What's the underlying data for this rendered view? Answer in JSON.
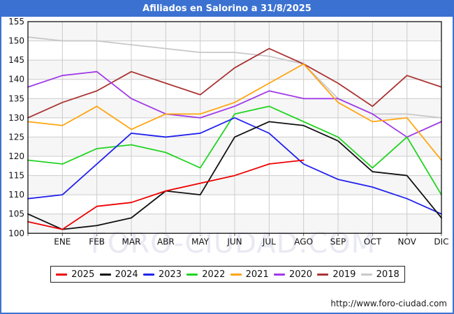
{
  "window": {
    "title": "Afiliados en Salorino a 31/8/2025",
    "header_color": "#3b72d2"
  },
  "watermark": "FORO-CIUDAD.COM",
  "footer": {
    "url": "http://www.foro-ciudad.com"
  },
  "legend": {
    "position": "bottom",
    "entries": [
      "2025",
      "2024",
      "2023",
      "2022",
      "2021",
      "2020",
      "2019",
      "2018"
    ]
  },
  "chart_data": {
    "type": "line",
    "title": "Afiliados en Salorino a 31/8/2025",
    "xlabel": "",
    "ylabel": "",
    "ylim": [
      100,
      155
    ],
    "ytick_step": 5,
    "grid": true,
    "legend_position": "bottom",
    "categories": [
      "",
      "ENE",
      "FEB",
      "MAR",
      "ABR",
      "MAY",
      "JUN",
      "JUL",
      "AGO",
      "SEP",
      "OCT",
      "NOV",
      "DIC"
    ],
    "series": [
      {
        "name": "2025",
        "color": "#ee0000",
        "values": [
          103,
          101,
          107,
          108,
          111,
          113,
          115,
          118,
          119
        ]
      },
      {
        "name": "2024",
        "color": "#111111",
        "values": [
          105,
          101,
          102,
          104,
          111,
          110,
          125,
          129,
          128,
          124,
          116,
          115,
          104
        ]
      },
      {
        "name": "2023",
        "color": "#2222ee",
        "values": [
          109,
          110,
          118,
          126,
          125,
          126,
          130,
          126,
          118,
          114,
          112,
          109,
          105
        ]
      },
      {
        "name": "2022",
        "color": "#21d421",
        "values": [
          119,
          118,
          122,
          123,
          121,
          117,
          131,
          133,
          129,
          125,
          117,
          125,
          110
        ]
      },
      {
        "name": "2021",
        "color": "#ffa510",
        "values": [
          129,
          128,
          133,
          127,
          131,
          131,
          134,
          139,
          144,
          134,
          129,
          130,
          119
        ]
      },
      {
        "name": "2020",
        "color": "#a03ae6",
        "values": [
          138,
          141,
          142,
          135,
          131,
          130,
          133,
          137,
          135,
          135,
          131,
          125,
          129
        ]
      },
      {
        "name": "2019",
        "color": "#aa3333",
        "values": [
          130,
          134,
          137,
          142,
          139,
          136,
          143,
          148,
          144,
          139,
          133,
          141,
          138
        ]
      },
      {
        "name": "2018",
        "color": "#c8c8c8",
        "values": [
          151,
          150,
          150,
          149,
          148,
          147,
          147,
          146,
          144,
          135,
          131,
          131,
          130
        ]
      }
    ]
  }
}
